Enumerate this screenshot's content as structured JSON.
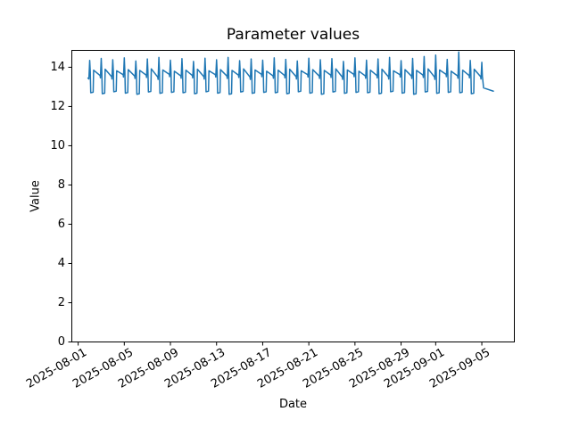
{
  "figure": {
    "background": "#ffffff"
  },
  "chart_data": {
    "type": "line",
    "title": "Parameter values",
    "xlabel": "Date",
    "ylabel": "Value",
    "grid": false,
    "legend": "none",
    "line_color": "#1f77b4",
    "line_width": 1.5,
    "x_axis": {
      "unit": "days since 2025-08-01",
      "xlim": [
        -0.55,
        37.82
      ],
      "tick_days": [
        0,
        4,
        8,
        12,
        16,
        20,
        24,
        28,
        31,
        35
      ],
      "tick_labels": [
        "2025-08-01",
        "2025-08-05",
        "2025-08-09",
        "2025-08-13",
        "2025-08-17",
        "2025-08-21",
        "2025-08-25",
        "2025-08-29",
        "2025-09-01",
        "2025-09-05"
      ]
    },
    "y_axis": {
      "ylim": [
        0,
        14.86
      ],
      "ticks": [
        0,
        2,
        4,
        6,
        8,
        10,
        12,
        14
      ]
    },
    "points": [
      [
        0.85,
        13.45
      ],
      [
        0.93,
        13.4
      ],
      [
        1,
        14.35
      ],
      [
        1.05,
        13.78
      ],
      [
        1.09,
        12.7
      ],
      [
        1.3,
        12.73
      ],
      [
        1.34,
        13.85
      ],
      [
        1.9,
        13.58
      ],
      [
        1.93,
        13.46
      ],
      [
        2,
        14.45
      ],
      [
        2.05,
        13.78
      ],
      [
        2.09,
        12.65
      ],
      [
        2.3,
        12.68
      ],
      [
        2.34,
        13.9
      ],
      [
        2.9,
        13.52
      ],
      [
        2.93,
        13.4
      ],
      [
        3,
        14.38
      ],
      [
        3.05,
        13.78
      ],
      [
        3.09,
        12.75
      ],
      [
        3.3,
        12.78
      ],
      [
        3.34,
        13.82
      ],
      [
        3.9,
        13.62
      ],
      [
        3.93,
        13.5
      ],
      [
        4,
        14.48
      ],
      [
        4.05,
        13.78
      ],
      [
        4.09,
        12.68
      ],
      [
        4.3,
        12.71
      ],
      [
        4.34,
        13.88
      ],
      [
        4.9,
        13.55
      ],
      [
        4.93,
        13.43
      ],
      [
        5,
        14.32
      ],
      [
        5.05,
        13.78
      ],
      [
        5.09,
        12.62
      ],
      [
        5.3,
        12.65
      ],
      [
        5.34,
        13.84
      ],
      [
        5.9,
        13.6
      ],
      [
        5.93,
        13.48
      ],
      [
        6,
        14.42
      ],
      [
        6.05,
        13.78
      ],
      [
        6.09,
        12.74
      ],
      [
        6.3,
        12.77
      ],
      [
        6.34,
        13.92
      ],
      [
        6.9,
        13.5
      ],
      [
        6.93,
        13.38
      ],
      [
        7,
        14.5
      ],
      [
        7.05,
        13.78
      ],
      [
        7.09,
        12.67
      ],
      [
        7.3,
        12.7
      ],
      [
        7.34,
        13.86
      ],
      [
        7.9,
        13.64
      ],
      [
        7.93,
        13.52
      ],
      [
        8,
        14.36
      ],
      [
        8.05,
        13.78
      ],
      [
        8.09,
        12.72
      ],
      [
        8.3,
        12.75
      ],
      [
        8.34,
        13.8
      ],
      [
        8.9,
        13.56
      ],
      [
        8.93,
        13.44
      ],
      [
        9,
        14.44
      ],
      [
        9.05,
        13.78
      ],
      [
        9.09,
        12.7
      ],
      [
        9.3,
        12.73
      ],
      [
        9.34,
        13.85
      ],
      [
        9.9,
        13.58
      ],
      [
        9.93,
        13.46
      ],
      [
        10,
        14.3
      ],
      [
        10.05,
        13.78
      ],
      [
        10.09,
        12.65
      ],
      [
        10.3,
        12.68
      ],
      [
        10.34,
        13.9
      ],
      [
        10.9,
        13.52
      ],
      [
        10.93,
        13.4
      ],
      [
        11,
        14.46
      ],
      [
        11.05,
        13.78
      ],
      [
        11.09,
        12.75
      ],
      [
        11.3,
        12.78
      ],
      [
        11.34,
        13.82
      ],
      [
        11.9,
        13.62
      ],
      [
        11.93,
        13.5
      ],
      [
        12,
        14.38
      ],
      [
        12.05,
        13.78
      ],
      [
        12.09,
        12.68
      ],
      [
        12.3,
        12.71
      ],
      [
        12.34,
        13.88
      ],
      [
        12.9,
        13.55
      ],
      [
        12.93,
        13.43
      ],
      [
        13,
        14.5
      ],
      [
        13.05,
        13.78
      ],
      [
        13.09,
        12.62
      ],
      [
        13.3,
        12.65
      ],
      [
        13.34,
        13.84
      ],
      [
        13.9,
        13.6
      ],
      [
        13.93,
        13.48
      ],
      [
        14,
        14.34
      ],
      [
        14.05,
        13.78
      ],
      [
        14.09,
        12.74
      ],
      [
        14.3,
        12.77
      ],
      [
        14.34,
        13.92
      ],
      [
        14.9,
        13.5
      ],
      [
        14.93,
        13.38
      ],
      [
        15,
        14.42
      ],
      [
        15.05,
        13.78
      ],
      [
        15.09,
        12.67
      ],
      [
        15.3,
        12.7
      ],
      [
        15.34,
        13.86
      ],
      [
        15.9,
        13.64
      ],
      [
        15.93,
        13.52
      ],
      [
        16,
        14.36
      ],
      [
        16.05,
        13.78
      ],
      [
        16.09,
        12.72
      ],
      [
        16.3,
        12.75
      ],
      [
        16.34,
        13.8
      ],
      [
        16.9,
        13.56
      ],
      [
        16.93,
        13.44
      ],
      [
        17,
        14.48
      ],
      [
        17.05,
        13.78
      ],
      [
        17.09,
        12.7
      ],
      [
        17.3,
        12.73
      ],
      [
        17.34,
        13.85
      ],
      [
        17.9,
        13.58
      ],
      [
        17.93,
        13.46
      ],
      [
        18,
        14.4
      ],
      [
        18.05,
        13.78
      ],
      [
        18.09,
        12.65
      ],
      [
        18.3,
        12.68
      ],
      [
        18.34,
        13.9
      ],
      [
        18.9,
        13.52
      ],
      [
        18.93,
        13.4
      ],
      [
        19,
        14.32
      ],
      [
        19.05,
        13.78
      ],
      [
        19.09,
        12.75
      ],
      [
        19.3,
        12.78
      ],
      [
        19.34,
        13.82
      ],
      [
        19.9,
        13.62
      ],
      [
        19.93,
        13.5
      ],
      [
        20,
        14.46
      ],
      [
        20.05,
        13.78
      ],
      [
        20.09,
        12.68
      ],
      [
        20.3,
        12.71
      ],
      [
        20.34,
        13.88
      ],
      [
        20.9,
        13.55
      ],
      [
        20.93,
        13.43
      ],
      [
        21,
        14.38
      ],
      [
        21.05,
        13.78
      ],
      [
        21.09,
        12.62
      ],
      [
        21.3,
        12.65
      ],
      [
        21.34,
        13.84
      ],
      [
        21.9,
        13.6
      ],
      [
        21.93,
        13.48
      ],
      [
        22,
        14.44
      ],
      [
        22.05,
        13.78
      ],
      [
        22.09,
        12.74
      ],
      [
        22.3,
        12.77
      ],
      [
        22.34,
        13.92
      ],
      [
        22.9,
        13.5
      ],
      [
        22.93,
        13.38
      ],
      [
        23,
        14.3
      ],
      [
        23.05,
        13.78
      ],
      [
        23.09,
        12.67
      ],
      [
        23.3,
        12.7
      ],
      [
        23.34,
        13.86
      ],
      [
        23.9,
        13.64
      ],
      [
        23.93,
        13.52
      ],
      [
        24,
        14.48
      ],
      [
        24.05,
        13.78
      ],
      [
        24.09,
        12.72
      ],
      [
        24.3,
        12.75
      ],
      [
        24.34,
        13.8
      ],
      [
        24.9,
        13.56
      ],
      [
        24.93,
        13.44
      ],
      [
        25,
        14.36
      ],
      [
        25.05,
        13.78
      ],
      [
        25.09,
        12.7
      ],
      [
        25.3,
        12.73
      ],
      [
        25.34,
        13.85
      ],
      [
        25.9,
        13.58
      ],
      [
        25.93,
        13.46
      ],
      [
        26,
        14.42
      ],
      [
        26.05,
        13.78
      ],
      [
        26.09,
        12.65
      ],
      [
        26.3,
        12.68
      ],
      [
        26.34,
        13.9
      ],
      [
        26.9,
        13.52
      ],
      [
        26.93,
        13.4
      ],
      [
        27,
        14.5
      ],
      [
        27.05,
        13.78
      ],
      [
        27.09,
        12.75
      ],
      [
        27.3,
        12.78
      ],
      [
        27.34,
        13.82
      ],
      [
        27.9,
        13.62
      ],
      [
        27.93,
        13.5
      ],
      [
        28,
        14.34
      ],
      [
        28.05,
        13.78
      ],
      [
        28.09,
        12.68
      ],
      [
        28.3,
        12.71
      ],
      [
        28.34,
        13.88
      ],
      [
        28.9,
        13.55
      ],
      [
        28.93,
        13.43
      ],
      [
        29,
        14.45
      ],
      [
        29.05,
        13.78
      ],
      [
        29.09,
        12.62
      ],
      [
        29.3,
        12.65
      ],
      [
        29.34,
        13.84
      ],
      [
        29.9,
        13.6
      ],
      [
        29.93,
        13.48
      ],
      [
        30,
        14.55
      ],
      [
        30.05,
        13.78
      ],
      [
        30.09,
        12.74
      ],
      [
        30.3,
        12.77
      ],
      [
        30.34,
        13.92
      ],
      [
        30.9,
        13.5
      ],
      [
        30.93,
        13.38
      ],
      [
        31,
        14.62
      ],
      [
        31.05,
        13.78
      ],
      [
        31.09,
        12.67
      ],
      [
        31.3,
        12.7
      ],
      [
        31.34,
        13.86
      ],
      [
        31.9,
        13.64
      ],
      [
        31.93,
        13.52
      ],
      [
        32,
        14.4
      ],
      [
        32.05,
        13.78
      ],
      [
        32.09,
        12.72
      ],
      [
        32.3,
        12.75
      ],
      [
        32.34,
        13.8
      ],
      [
        32.9,
        13.56
      ],
      [
        32.93,
        13.44
      ],
      [
        33,
        14.78
      ],
      [
        33.05,
        13.78
      ],
      [
        33.09,
        12.7
      ],
      [
        33.3,
        12.73
      ],
      [
        33.34,
        13.85
      ],
      [
        33.9,
        13.58
      ],
      [
        33.93,
        13.46
      ],
      [
        34,
        14.35
      ],
      [
        34.05,
        13.78
      ],
      [
        34.09,
        12.65
      ],
      [
        34.3,
        12.68
      ],
      [
        34.34,
        13.9
      ],
      [
        34.9,
        13.52
      ],
      [
        34.93,
        13.4
      ],
      [
        35,
        14.25
      ],
      [
        35.05,
        13.55
      ],
      [
        35.15,
        12.95
      ],
      [
        36,
        12.78
      ]
    ]
  }
}
